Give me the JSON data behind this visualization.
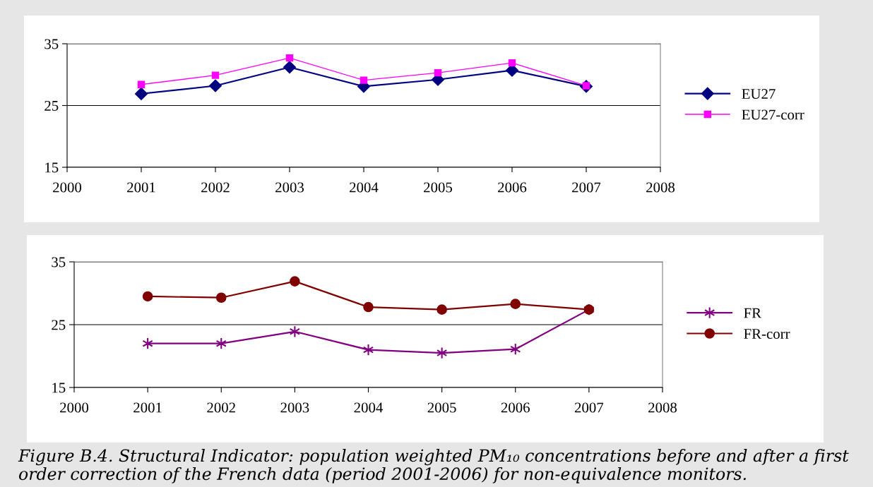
{
  "chart_data": [
    {
      "type": "line",
      "x": [
        2001,
        2002,
        2003,
        2004,
        2005,
        2006,
        2007
      ],
      "xlim": [
        2000,
        2008
      ],
      "xticks": [
        2000,
        2001,
        2002,
        2003,
        2004,
        2005,
        2006,
        2007,
        2008
      ],
      "ylim": [
        15,
        35
      ],
      "yticks": [
        15,
        25,
        35
      ],
      "grid": "y",
      "legend": "right",
      "series": [
        {
          "name": "EU27",
          "color": "#000080",
          "marker": "diamond",
          "values": [
            26.9,
            28.2,
            31.2,
            28.1,
            29.2,
            30.7,
            28.1
          ]
        },
        {
          "name": "EU27-corr",
          "color": "#ff00ff",
          "marker": "square",
          "values": [
            28.4,
            29.9,
            32.7,
            29.1,
            30.3,
            31.9,
            28.2
          ]
        }
      ]
    },
    {
      "type": "line",
      "x": [
        2001,
        2002,
        2003,
        2004,
        2005,
        2006,
        2007
      ],
      "xlim": [
        2000,
        2008
      ],
      "xticks": [
        2000,
        2001,
        2002,
        2003,
        2004,
        2005,
        2006,
        2007,
        2008
      ],
      "ylim": [
        15,
        35
      ],
      "yticks": [
        15,
        25,
        35
      ],
      "grid": "y",
      "legend": "right",
      "series": [
        {
          "name": "FR",
          "color": "#800080",
          "marker": "cross",
          "values": [
            22.0,
            22.0,
            23.9,
            21.0,
            20.5,
            21.1,
            27.4
          ]
        },
        {
          "name": "FR-corr",
          "color": "#800000",
          "marker": "circle",
          "values": [
            29.5,
            29.3,
            31.9,
            27.8,
            27.4,
            28.3,
            27.4
          ]
        }
      ],
      "annotations": [
        "Figure B.4. Structural Indicator: population weighted PM₁₀ concentrations before and after a first order correction of the French data (period 2001-2006) for non-equivalence monitors."
      ]
    }
  ]
}
